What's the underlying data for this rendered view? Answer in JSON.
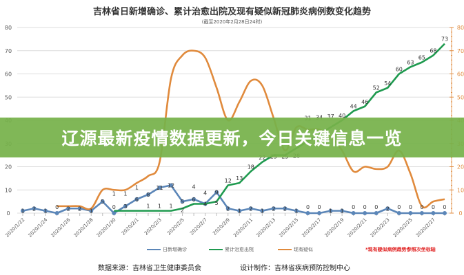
{
  "banner": {
    "text": "辽源最新疫情数据更新，今日关键信息一览"
  },
  "footer": {
    "source": "数据来源：吉林省卫生健康委员会",
    "designer": "设计制作：吉林省疾病预防控制中心"
  },
  "chart_data": {
    "type": "line",
    "title": "吉林省日新增确诊、累计治愈出院及现有疑似新冠肺炎病例数变化趋势",
    "subtitle": "(截至2020年2月28日24时)",
    "note": "*现有疑似病例趋势参照次坐标轴",
    "x": [
      "2020/1/22",
      "2020/1/23",
      "2020/1/24",
      "2020/1/25",
      "2020/1/26",
      "2020/1/27",
      "2020/1/28",
      "2020/1/29",
      "2020/1/30",
      "2020/1/31",
      "2020/2/1",
      "2020/2/2",
      "2020/2/3",
      "2020/2/4",
      "2020/2/5",
      "2020/2/6",
      "2020/2/7",
      "2020/2/8",
      "2020/2/9",
      "2020/2/10",
      "2020/2/11",
      "2020/2/12",
      "2020/2/13",
      "2020/2/14",
      "2020/2/15",
      "2020/2/16",
      "2020/2/17",
      "2020/2/18",
      "2020/2/19",
      "2020/2/20",
      "2020/2/21",
      "2020/2/22",
      "2020/2/23",
      "2020/2/24",
      "2020/2/25",
      "2020/2/26",
      "2020/2/27",
      "2020/2/28"
    ],
    "x_tick_labels": [
      "2020/1/22",
      "2020/1/24",
      "2020/1/26",
      "2020/1/28",
      "2020/1/30",
      "2020/2/1",
      "2020/2/3",
      "2020/2/5",
      "2020/2/7",
      "2020/2/9",
      "2020/2/11",
      "2020/2/13",
      "2020/2/15",
      "2020/2/17",
      "2020/2/19",
      "2020/2/21",
      "2020/2/23",
      "2020/2/25",
      "2020/2/27"
    ],
    "y_left": {
      "range": [
        0,
        80
      ],
      "ticks": [
        0,
        10,
        20,
        30,
        40,
        50,
        60,
        70,
        80
      ]
    },
    "y_right": {
      "range": [
        0,
        80
      ],
      "ticks": [
        0,
        10,
        20,
        30,
        40,
        50,
        60,
        70,
        80
      ],
      "color": "#e08a3c"
    },
    "grid": true,
    "legend_position": "bottom",
    "series": [
      {
        "name": "日新增确诊",
        "axis": "left",
        "color": "#5b86b8",
        "labels": true,
        "marker": true,
        "values": [
          1,
          2,
          1,
          0,
          2,
          2,
          1,
          5,
          0,
          3,
          6,
          8,
          11,
          12,
          5,
          6,
          4,
          9,
          2,
          1,
          2,
          1,
          2,
          2,
          1,
          0,
          0,
          1,
          1,
          0,
          0,
          0,
          2,
          0,
          0,
          0,
          0,
          0
        ]
      },
      {
        "name": "累计治愈出院",
        "axis": "left",
        "color": "#1f9a4f",
        "labels": true,
        "marker": false,
        "values": [
          null,
          null,
          null,
          null,
          null,
          null,
          null,
          null,
          1,
          1,
          1,
          1,
          1,
          1,
          2,
          4,
          4,
          5,
          12,
          13,
          18,
          22,
          25,
          25,
          28,
          31,
          34,
          37,
          40,
          44,
          46,
          52,
          54,
          60,
          63,
          65,
          68,
          73
        ]
      },
      {
        "name": "现有疑似",
        "axis": "right",
        "color": "#e08a3c",
        "labels": false,
        "marker": false,
        "values": [
          null,
          null,
          null,
          3,
          3,
          3,
          2,
          10,
          10,
          10,
          13,
          16,
          22,
          58,
          68,
          70,
          67,
          54,
          40,
          48,
          57,
          55,
          41,
          27,
          37,
          36,
          36,
          33,
          27,
          18,
          20,
          19,
          20,
          27,
          17,
          3,
          5,
          6
        ]
      }
    ]
  }
}
